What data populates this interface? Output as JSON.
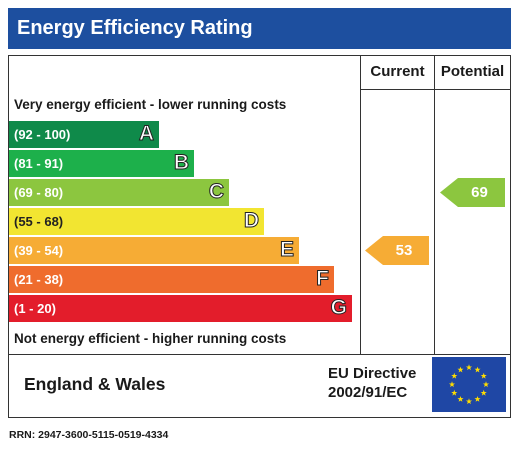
{
  "title": "Energy Efficiency Rating",
  "headers": {
    "current": "Current",
    "potential": "Potential"
  },
  "top_caption": "Very energy efficient - lower running costs",
  "bottom_caption": "Not energy efficient - higher running costs",
  "footer": {
    "region": "England & Wales",
    "directive_line1": "EU Directive",
    "directive_line2": "2002/91/EC"
  },
  "rrn": "RRN: 2947-3600-5115-0519-4334",
  "chart_data": {
    "type": "bar",
    "title": "Energy Efficiency Rating",
    "bands": [
      {
        "letter": "A",
        "range": "(92 - 100)",
        "color": "#0f8a4a"
      },
      {
        "letter": "B",
        "range": "(81 - 91)",
        "color": "#1db04b"
      },
      {
        "letter": "C",
        "range": "(69 - 80)",
        "color": "#8cc63f"
      },
      {
        "letter": "D",
        "range": "(55 - 68)",
        "color": "#f2e531"
      },
      {
        "letter": "E",
        "range": "(39 - 54)",
        "color": "#f6ac35"
      },
      {
        "letter": "F",
        "range": "(21 - 38)",
        "color": "#ef6c2d"
      },
      {
        "letter": "G",
        "range": "(1 - 20)",
        "color": "#e31d2b"
      }
    ],
    "current": {
      "value": 53,
      "band": "E",
      "color": "#f6ac35"
    },
    "potential": {
      "value": 69,
      "band": "C",
      "color": "#8cc63f"
    }
  }
}
